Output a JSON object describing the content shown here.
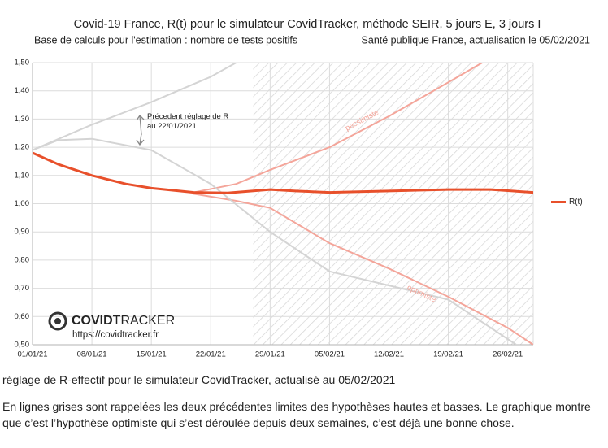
{
  "chart_data": {
    "type": "line",
    "title": "Covid-19 France, R(t) pour le simulateur CovidTracker, méthode SEIR, 5 jours E, 3 jours I",
    "subtitle_left": "Base de calculs pour l'estimation : nombre de tests positifs",
    "subtitle_right": "Santé publique France, actualisation le 05/02/2021",
    "xlim": [
      "2021-01-01",
      "2021-03-01"
    ],
    "xticks": [
      {
        "value": "2021-01-01",
        "label": "01/01/21"
      },
      {
        "value": "2021-01-08",
        "label": "08/01/21"
      },
      {
        "value": "2021-01-15",
        "label": "15/01/21"
      },
      {
        "value": "2021-01-22",
        "label": "22/01/21"
      },
      {
        "value": "2021-01-29",
        "label": "29/01/21"
      },
      {
        "value": "2021-02-05",
        "label": "05/02/21"
      },
      {
        "value": "2021-02-12",
        "label": "12/02/21"
      },
      {
        "value": "2021-02-19",
        "label": "19/02/21"
      },
      {
        "value": "2021-02-26",
        "label": "26/02/21"
      }
    ],
    "ylim": [
      0.5,
      1.5
    ],
    "yticks": [
      {
        "value": 0.5,
        "label": "0,50"
      },
      {
        "value": 0.6,
        "label": "0,60"
      },
      {
        "value": 0.7,
        "label": "0,70"
      },
      {
        "value": 0.8,
        "label": "0,80"
      },
      {
        "value": 0.9,
        "label": "0,90"
      },
      {
        "value": 1.0,
        "label": "1,00"
      },
      {
        "value": 1.1,
        "label": "1,10"
      },
      {
        "value": 1.2,
        "label": "1,20"
      },
      {
        "value": 1.3,
        "label": "1,30"
      },
      {
        "value": 1.4,
        "label": "1,40"
      },
      {
        "value": 1.5,
        "label": "1,50"
      }
    ],
    "grid": true,
    "forecast_start": "2021-01-27",
    "legend": "right",
    "series": [
      {
        "name": "R(t)",
        "color": "#e8502b",
        "x": [
          "2021-01-01",
          "2021-01-04",
          "2021-01-08",
          "2021-01-12",
          "2021-01-15",
          "2021-01-20",
          "2021-01-24",
          "2021-01-29",
          "2021-02-01",
          "2021-02-05",
          "2021-02-12",
          "2021-02-19",
          "2021-02-24",
          "2021-03-01"
        ],
        "values": [
          1.18,
          1.14,
          1.1,
          1.07,
          1.055,
          1.04,
          1.038,
          1.05,
          1.045,
          1.04,
          1.045,
          1.05,
          1.05,
          1.04
        ]
      }
    ],
    "reference_lines": [
      {
        "label": "pessimiste",
        "color": "#f4a59a",
        "x": [
          "2021-01-20",
          "2021-01-25",
          "2021-01-29",
          "2021-02-05",
          "2021-02-12",
          "2021-02-19",
          "2021-02-23"
        ],
        "values": [
          1.04,
          1.07,
          1.12,
          1.2,
          1.31,
          1.43,
          1.5
        ]
      },
      {
        "label": "optimiste",
        "color": "#f4a59a",
        "x": [
          "2021-01-20",
          "2021-01-25",
          "2021-01-29",
          "2021-02-05",
          "2021-02-12",
          "2021-02-19",
          "2021-02-26",
          "2021-03-01"
        ],
        "values": [
          1.035,
          1.01,
          0.985,
          0.86,
          0.77,
          0.67,
          0.56,
          0.5
        ]
      },
      {
        "color": "#d4d4d4",
        "x": [
          "2021-01-01",
          "2021-01-08",
          "2021-01-15",
          "2021-01-22",
          "2021-01-25"
        ],
        "values": [
          1.19,
          1.28,
          1.36,
          1.45,
          1.5
        ]
      },
      {
        "color": "#d4d4d4",
        "x": [
          "2021-01-01",
          "2021-01-04",
          "2021-01-08",
          "2021-01-15",
          "2021-01-22",
          "2021-01-29",
          "2021-02-05",
          "2021-02-12",
          "2021-02-19",
          "2021-02-24",
          "2021-02-27"
        ],
        "values": [
          1.19,
          1.225,
          1.23,
          1.19,
          1.07,
          0.9,
          0.76,
          0.71,
          0.66,
          0.56,
          0.5
        ]
      }
    ],
    "annotation": [
      "Précedent réglage de R",
      "au 22/01/2021"
    ],
    "logo": [
      "COVID",
      "TRACKER"
    ],
    "logo_url": "https://covidtracker.fr"
  },
  "caption": "réglage de R-effectif pour le simulateur CovidTracker, actualisé au 05/02/2021",
  "description": "En lignes grises sont rappelées les deux précédentes limites des hypothèses hautes et basses. Le graphique montre que c’est l’hypothèse optimiste qui s’est déroulée depuis deux semaines, c’est déjà une bonne chose."
}
